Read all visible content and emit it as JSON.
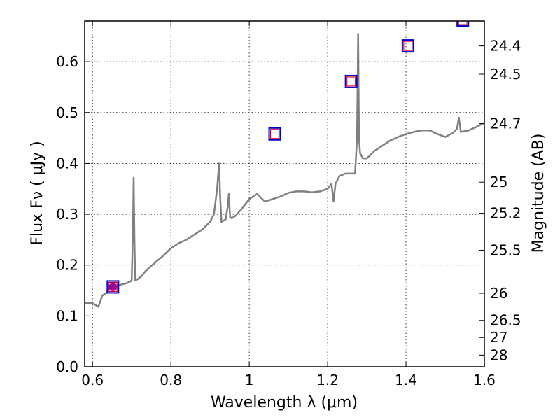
{
  "chart_data": {
    "type": "line",
    "xlabel": "Wavelength  λ (μm)",
    "ylabel": "Flux  Fν  ( μJy )",
    "ylabel_right": "Magnitude (AB)",
    "xlim": [
      0.58,
      1.6
    ],
    "ylim": [
      0.0,
      0.68
    ],
    "grid": true,
    "x_ticks": [
      0.6,
      0.8,
      1.0,
      1.2,
      1.4,
      1.6
    ],
    "x_tick_labels": [
      "0.6",
      "0.8",
      "1",
      "1.2",
      "1.4",
      "1.6"
    ],
    "y_ticks": [
      0.0,
      0.1,
      0.2,
      0.3,
      0.4,
      0.5,
      0.6
    ],
    "y_tick_labels": [
      "0.0",
      "0.1",
      "0.2",
      "0.3",
      "0.4",
      "0.5",
      "0.6"
    ],
    "right_ticks": [
      {
        "label": "24.4",
        "flux": 0.631
      },
      {
        "label": "24.5",
        "flux": 0.5754
      },
      {
        "label": "24.7",
        "flux": 0.4786
      },
      {
        "label": "25",
        "flux": 0.3631
      },
      {
        "label": "25.2",
        "flux": 0.302
      },
      {
        "label": "25.5",
        "flux": 0.2291
      },
      {
        "label": "26",
        "flux": 0.1445
      },
      {
        "label": "26.5",
        "flux": 0.0912
      },
      {
        "label": "27",
        "flux": 0.0575
      },
      {
        "label": "28",
        "flux": 0.0229
      }
    ],
    "series": [
      {
        "type": "spectrum",
        "color": "#808080",
        "x": [
          0.58,
          0.6,
          0.615,
          0.625,
          0.635,
          0.645,
          0.655,
          0.665,
          0.675,
          0.685,
          0.695,
          0.7,
          0.703,
          0.705,
          0.707,
          0.709,
          0.715,
          0.725,
          0.735,
          0.745,
          0.76,
          0.78,
          0.8,
          0.82,
          0.84,
          0.86,
          0.88,
          0.9,
          0.91,
          0.918,
          0.923,
          0.926,
          0.929,
          0.935,
          0.94,
          0.945,
          0.948,
          0.951,
          0.955,
          0.965,
          0.98,
          1.0,
          1.02,
          1.04,
          1.06,
          1.08,
          1.1,
          1.12,
          1.14,
          1.16,
          1.18,
          1.2,
          1.21,
          1.215,
          1.22,
          1.23,
          1.245,
          1.26,
          1.27,
          1.275,
          1.278,
          1.28,
          1.283,
          1.29,
          1.3,
          1.32,
          1.34,
          1.36,
          1.38,
          1.4,
          1.42,
          1.44,
          1.46,
          1.48,
          1.5,
          1.52,
          1.53,
          1.535,
          1.54,
          1.56,
          1.58,
          1.6
        ],
        "y": [
          0.125,
          0.125,
          0.118,
          0.14,
          0.145,
          0.155,
          0.158,
          0.16,
          0.162,
          0.164,
          0.167,
          0.17,
          0.26,
          0.372,
          0.25,
          0.17,
          0.172,
          0.178,
          0.188,
          0.195,
          0.205,
          0.218,
          0.233,
          0.243,
          0.25,
          0.26,
          0.27,
          0.285,
          0.3,
          0.35,
          0.4,
          0.33,
          0.285,
          0.288,
          0.29,
          0.315,
          0.34,
          0.295,
          0.292,
          0.297,
          0.31,
          0.33,
          0.34,
          0.325,
          0.33,
          0.335,
          0.342,
          0.345,
          0.345,
          0.343,
          0.345,
          0.35,
          0.36,
          0.325,
          0.36,
          0.375,
          0.38,
          0.38,
          0.38,
          0.45,
          0.655,
          0.45,
          0.42,
          0.41,
          0.41,
          0.425,
          0.435,
          0.445,
          0.452,
          0.458,
          0.462,
          0.465,
          0.465,
          0.458,
          0.452,
          0.46,
          0.468,
          0.49,
          0.462,
          0.465,
          0.472,
          0.48
        ]
      }
    ],
    "photometry": [
      {
        "x": 0.652,
        "y": 0.157,
        "outer_color": "#0000cc",
        "inner_color": "#dd0022",
        "filled_point": true,
        "point_color": "#990099"
      },
      {
        "x": 1.065,
        "y": 0.458,
        "outer_color": "#0000cc",
        "inner_color": "#dd0022",
        "filled_point": false
      },
      {
        "x": 1.26,
        "y": 0.561,
        "outer_color": "#0000cc",
        "inner_color": "#dd0022",
        "filled_point": false
      },
      {
        "x": 1.405,
        "y": 0.631,
        "outer_color": "#0000cc",
        "inner_color": "#dd0022",
        "filled_point": false
      },
      {
        "x": 1.545,
        "y": 0.682,
        "outer_color": "#0000cc",
        "inner_color": "#dd0022",
        "filled_point": false
      }
    ]
  }
}
